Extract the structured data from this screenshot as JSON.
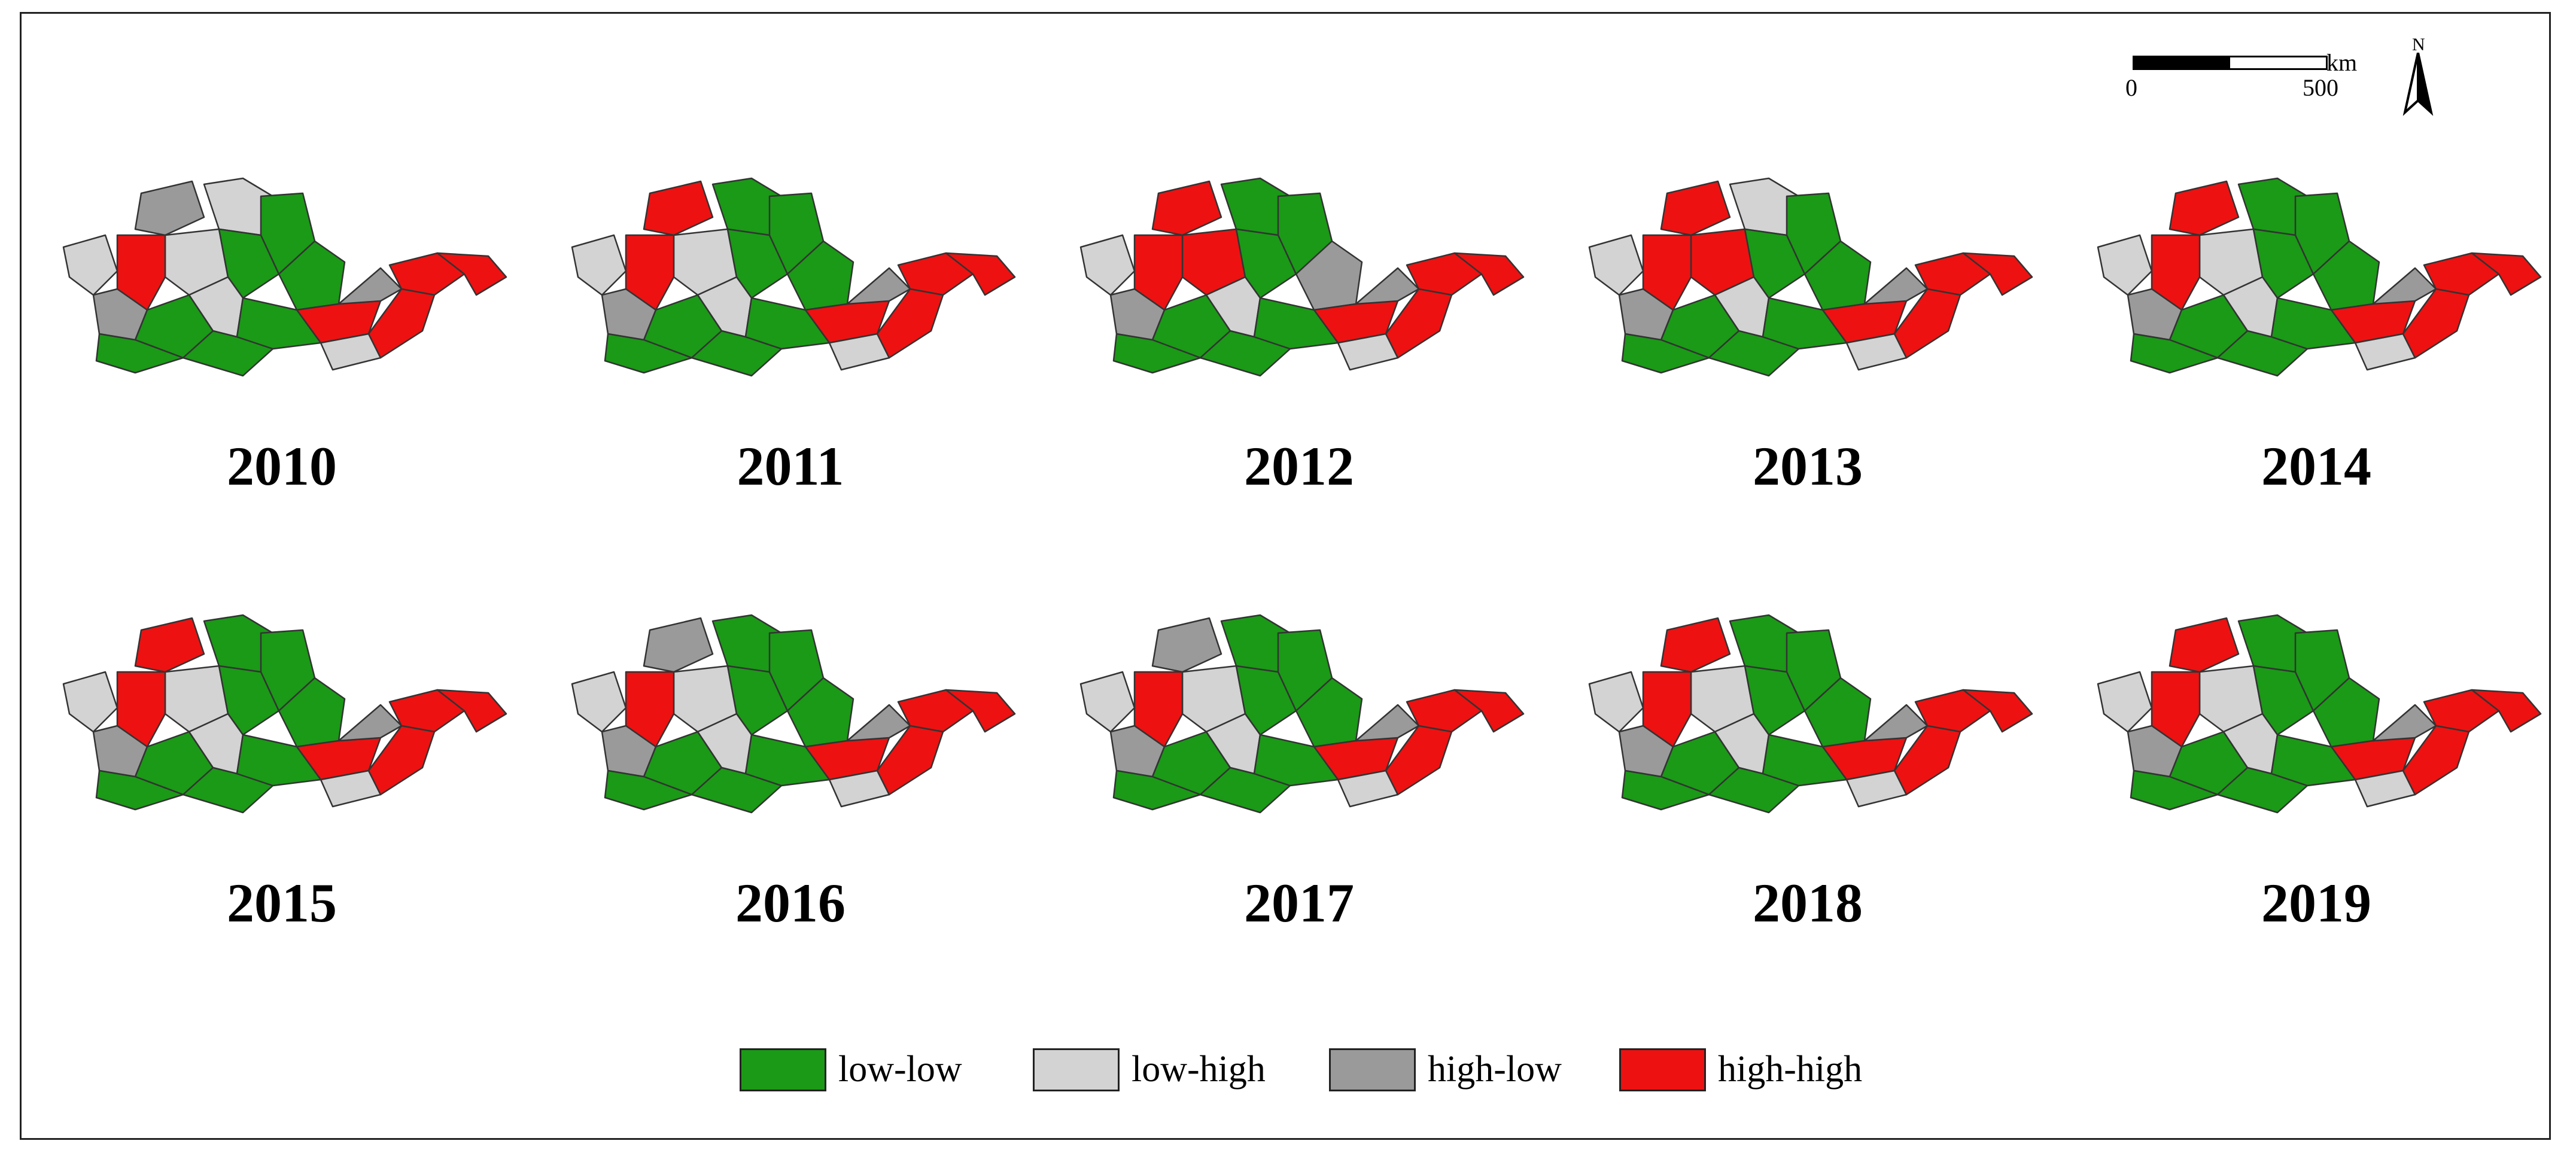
{
  "panels": [
    {
      "year": "2010",
      "regions": [
        "high-low",
        "low-high",
        "low-high",
        "high-high",
        "low-high",
        "low-low",
        "low-low",
        "low-low",
        "high-high",
        "high-low",
        "low-low",
        "low-high",
        "high-high",
        "low-low",
        "high-low",
        "low-low",
        "high-high",
        "low-high",
        "high-high",
        "low-low"
      ]
    },
    {
      "year": "2011",
      "regions": [
        "high-high",
        "low-low",
        "low-high",
        "high-high",
        "low-high",
        "low-low",
        "low-low",
        "low-low",
        "high-high",
        "high-low",
        "low-low",
        "low-high",
        "high-high",
        "low-low",
        "high-low",
        "low-low",
        "high-high",
        "low-high",
        "high-high",
        "low-low"
      ]
    },
    {
      "year": "2012",
      "regions": [
        "high-high",
        "low-low",
        "high-high",
        "high-high",
        "low-high",
        "low-low",
        "low-low",
        "high-low",
        "high-high",
        "high-low",
        "low-low",
        "low-high",
        "high-high",
        "low-low",
        "high-low",
        "low-low",
        "high-high",
        "low-high",
        "high-high",
        "low-low"
      ]
    },
    {
      "year": "2013",
      "regions": [
        "high-high",
        "low-high",
        "high-high",
        "high-high",
        "low-high",
        "low-low",
        "low-low",
        "low-low",
        "high-high",
        "high-low",
        "low-low",
        "low-high",
        "high-high",
        "low-low",
        "high-low",
        "low-low",
        "high-high",
        "low-high",
        "high-high",
        "low-low"
      ]
    },
    {
      "year": "2014",
      "regions": [
        "high-high",
        "low-low",
        "low-high",
        "high-high",
        "low-high",
        "low-low",
        "low-low",
        "low-low",
        "high-high",
        "high-low",
        "low-low",
        "low-high",
        "high-high",
        "low-low",
        "high-low",
        "low-low",
        "high-high",
        "low-high",
        "high-high",
        "low-low"
      ]
    },
    {
      "year": "2015",
      "regions": [
        "high-high",
        "low-low",
        "low-high",
        "high-high",
        "low-high",
        "low-low",
        "low-low",
        "low-low",
        "high-high",
        "high-low",
        "low-low",
        "low-high",
        "high-high",
        "low-low",
        "high-low",
        "low-low",
        "high-high",
        "low-high",
        "high-high",
        "low-low"
      ]
    },
    {
      "year": "2016",
      "regions": [
        "high-low",
        "low-low",
        "low-high",
        "high-high",
        "low-high",
        "low-low",
        "low-low",
        "low-low",
        "high-high",
        "high-low",
        "low-low",
        "low-high",
        "high-high",
        "low-low",
        "high-low",
        "low-low",
        "high-high",
        "low-high",
        "high-high",
        "low-low"
      ]
    },
    {
      "year": "2017",
      "regions": [
        "high-low",
        "low-low",
        "low-high",
        "high-high",
        "low-high",
        "low-low",
        "low-low",
        "low-low",
        "high-high",
        "high-low",
        "low-low",
        "low-high",
        "high-high",
        "low-low",
        "high-low",
        "low-low",
        "high-high",
        "low-high",
        "high-high",
        "low-low"
      ]
    },
    {
      "year": "2018",
      "regions": [
        "high-high",
        "low-low",
        "low-high",
        "high-high",
        "low-high",
        "low-low",
        "low-low",
        "low-low",
        "high-high",
        "high-low",
        "low-low",
        "low-high",
        "high-high",
        "low-low",
        "high-low",
        "low-low",
        "high-high",
        "low-high",
        "high-high",
        "low-low"
      ]
    },
    {
      "year": "2019",
      "regions": [
        "high-high",
        "low-low",
        "low-high",
        "high-high",
        "low-high",
        "low-low",
        "low-low",
        "low-low",
        "high-high",
        "high-low",
        "low-low",
        "low-high",
        "high-high",
        "low-low",
        "high-low",
        "low-low",
        "high-high",
        "low-high",
        "high-high",
        "low-low"
      ]
    }
  ],
  "legend": [
    {
      "key": "low-low",
      "label": "low-low",
      "color": "#1a9a16"
    },
    {
      "key": "low-high",
      "label": "low-high",
      "color": "#d3d3d3"
    },
    {
      "key": "high-low",
      "label": "high-low",
      "color": "#9a9a9a"
    },
    {
      "key": "high-high",
      "label": "high-high",
      "color": "#ee1111"
    }
  ],
  "scale": {
    "unit": "km",
    "start": "0",
    "end": "500"
  },
  "north": {
    "label": "N"
  }
}
